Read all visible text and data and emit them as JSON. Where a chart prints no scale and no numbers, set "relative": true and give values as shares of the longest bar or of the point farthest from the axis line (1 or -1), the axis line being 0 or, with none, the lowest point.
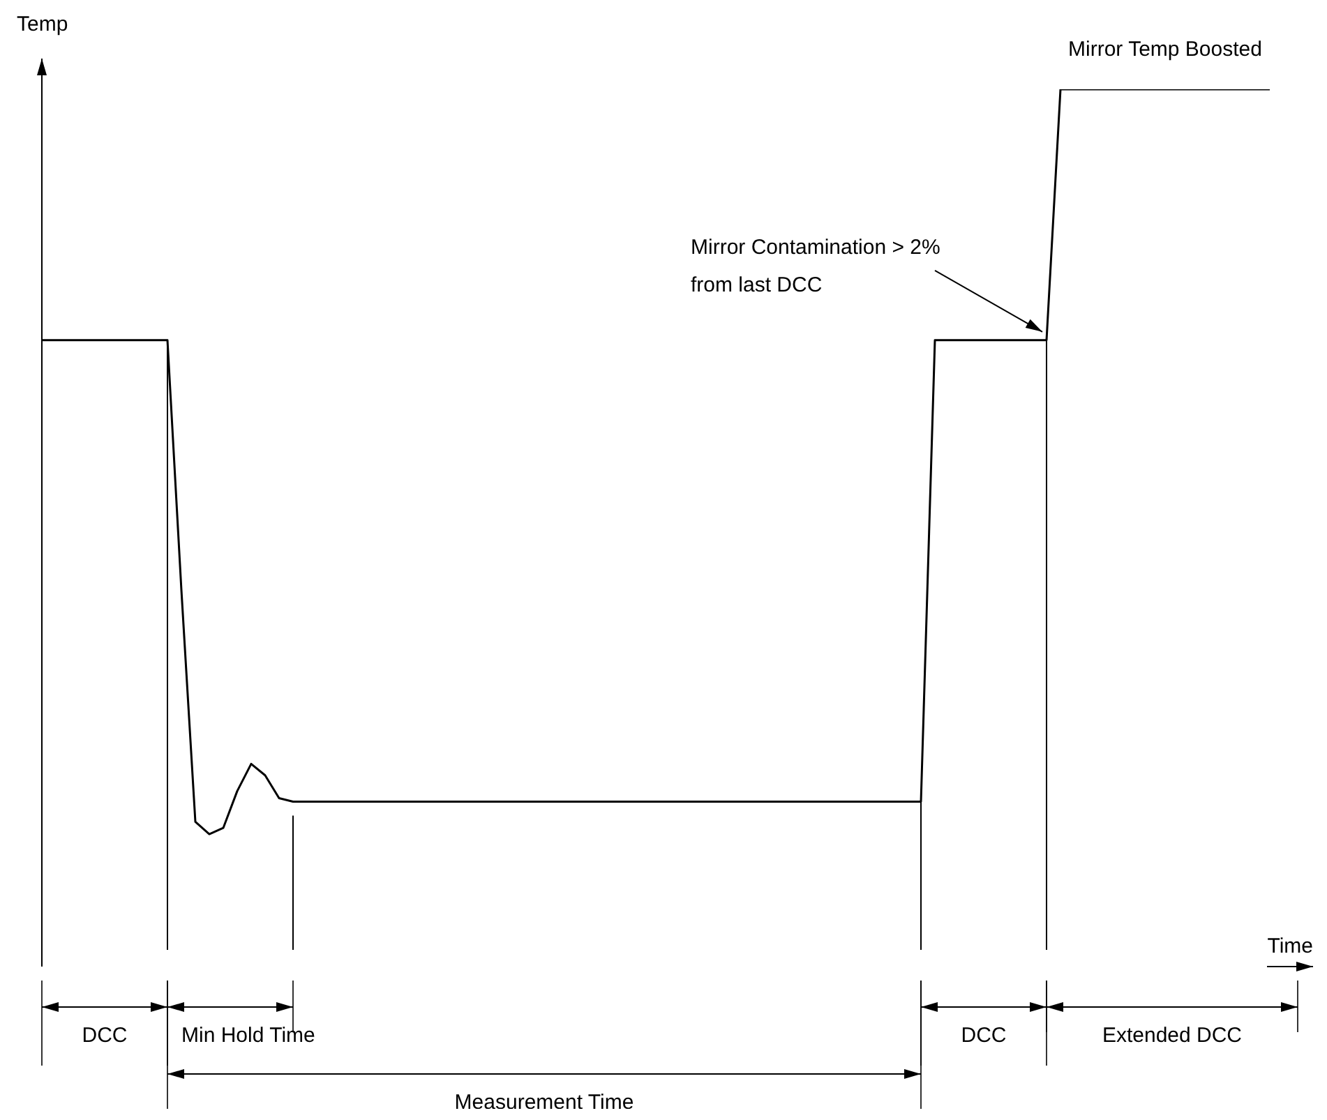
{
  "chart_data": {
    "type": "line",
    "relative": true,
    "xlabel": "Time",
    "ylabel": "Temp",
    "categories": [
      null,
      null,
      null,
      null,
      null,
      null,
      null,
      null,
      null,
      null,
      null,
      null,
      null,
      null,
      null,
      null,
      null,
      null,
      null,
      null,
      null,
      null,
      null,
      null,
      null,
      null,
      null,
      null,
      null,
      null,
      null,
      null,
      null,
      null,
      null,
      null,
      null,
      null,
      null,
      null,
      null,
      null,
      null,
      null,
      null,
      null,
      null,
      null,
      null,
      null,
      null,
      null,
      null,
      null,
      null,
      null,
      null,
      null,
      null,
      null,
      null,
      null,
      null,
      null,
      null,
      null,
      null,
      null,
      null,
      null,
      null,
      null,
      null,
      null,
      null,
      null,
      null,
      null,
      null,
      null,
      null,
      null,
      null,
      null,
      null,
      null,
      null,
      null,
      null
    ],
    "series": [
      {
        "color": "#000000",
        "values": [
          0.714,
          0.714,
          0.714,
          0.714,
          0.714,
          0.714,
          0.714,
          0.714,
          0.714,
          0.714,
          0.429,
          0.165,
          0.151,
          0.158,
          0.2,
          0.231,
          0.218,
          0.192,
          0.188,
          0.188,
          0.188,
          0.188,
          0.188,
          0.188,
          0.188,
          0.188,
          0.188,
          0.188,
          0.188,
          0.188,
          0.188,
          0.188,
          0.188,
          0.188,
          0.188,
          0.188,
          0.188,
          0.188,
          0.188,
          0.188,
          0.188,
          0.188,
          0.188,
          0.188,
          0.188,
          0.188,
          0.188,
          0.188,
          0.188,
          0.188,
          0.188,
          0.188,
          0.188,
          0.188,
          0.188,
          0.188,
          0.188,
          0.188,
          0.188,
          0.188,
          0.188,
          0.188,
          0.188,
          0.188,
          0.714,
          0.714,
          0.714,
          0.714,
          0.714,
          0.714,
          0.714,
          0.714,
          0.714,
          1,
          1,
          1,
          1,
          1,
          1,
          1,
          1,
          1,
          1,
          1,
          1,
          1,
          1,
          1,
          1
        ]
      }
    ],
    "marker": "none",
    "line_style": "solid",
    "annotations": [
      "DCC",
      "Min Hold Time",
      "Measurement Time",
      "DCC",
      "Extended DCC",
      "Mirror Contamination > 2%\nfrom last DCC",
      "Mirror Temp Boosted"
    ]
  }
}
